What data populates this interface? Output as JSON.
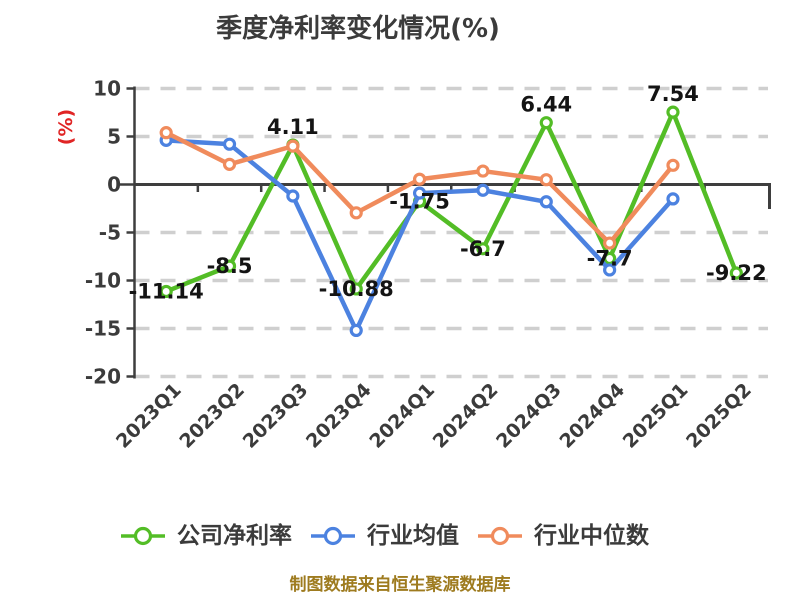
{
  "title": "季度净利率变化情况(%)",
  "source_note": "制图数据来自恒生聚源数据库",
  "y_axis": {
    "unit_label": "(%)",
    "unit_label_color": "#e02525",
    "ticks": [
      10,
      5,
      0,
      -5,
      -10,
      -15,
      -20
    ]
  },
  "colors": {
    "company": "#53bd26",
    "industry_mean": "#4c82e0",
    "industry_median": "#f08b5c",
    "axis": "#3e3e3e",
    "grid": "#cfcfcf",
    "tick_text": "#3b3b3b",
    "data_label": "#141414",
    "marker_fill": "#ffffff",
    "source_text": "#9e7b1f"
  },
  "legend": {
    "position": "bottom",
    "items": [
      {
        "label": "公司净利率",
        "color": "#53bd26"
      },
      {
        "label": "行业均值",
        "color": "#4c82e0"
      },
      {
        "label": "行业中位数",
        "color": "#f08b5c"
      }
    ]
  },
  "chart_data": {
    "type": "line",
    "title": "季度净利率变化情况(%)",
    "xlabel": "",
    "ylabel": "(%)",
    "ylim": [
      -20,
      10
    ],
    "yticks": [
      10,
      5,
      0,
      -5,
      -10,
      -15,
      -20
    ],
    "grid": "horizontal-dashed",
    "legend_position": "bottom",
    "categories": [
      "2023Q1",
      "2023Q2",
      "2023Q3",
      "2023Q4",
      "2024Q1",
      "2024Q2",
      "2024Q3",
      "2024Q4",
      "2025Q1",
      "2025Q2"
    ],
    "series": [
      {
        "name": "公司净利率",
        "color": "#53bd26",
        "values": [
          -11.14,
          -8.5,
          4.11,
          -10.88,
          -1.75,
          -6.7,
          6.44,
          -7.7,
          7.54,
          -9.22
        ],
        "point_labels": [
          "-11.14",
          "-8.5",
          "4.11",
          "-10.88",
          "-1.75",
          "-6.7",
          "6.44",
          "-7.7",
          "7.54",
          "-9.22"
        ]
      },
      {
        "name": "行业均值",
        "color": "#4c82e0",
        "values": [
          4.6,
          4.2,
          -1.2,
          -15.2,
          -0.9,
          -0.6,
          -1.8,
          -8.9,
          -1.5,
          null
        ],
        "point_labels": null
      },
      {
        "name": "行业中位数",
        "color": "#f08b5c",
        "values": [
          5.4,
          2.1,
          4.0,
          -2.95,
          0.55,
          1.4,
          0.5,
          -6.1,
          2.0,
          null
        ],
        "point_labels": null
      }
    ]
  }
}
